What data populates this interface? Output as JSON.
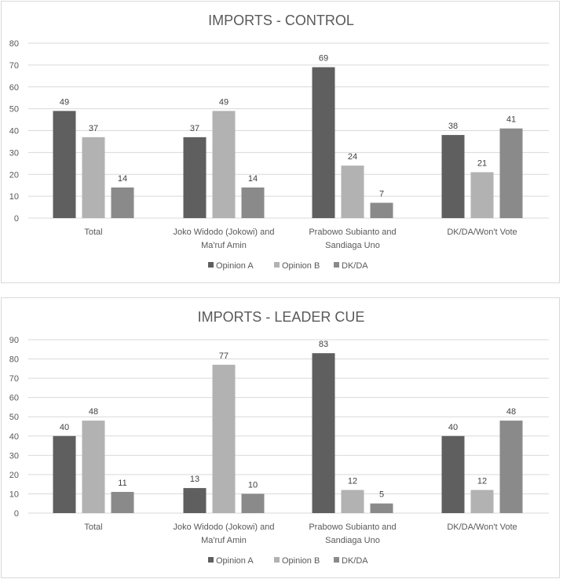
{
  "colors": {
    "opinion_a": "#5f5f5f",
    "opinion_b": "#b2b2b2",
    "dk_da": "#8a8a8a",
    "grid": "#d9d9d9",
    "text": "#595959"
  },
  "chart_data": [
    {
      "type": "bar",
      "title": "IMPORTS - CONTROL",
      "xlabel": "",
      "ylabel": "",
      "ylim": [
        0,
        80
      ],
      "yticks": [
        "0",
        "10",
        "20",
        "30",
        "40",
        "50",
        "60",
        "70",
        "80"
      ],
      "grid": true,
      "legend": "bottom",
      "categories": [
        [
          "Total"
        ],
        [
          "Joko Widodo (Jokowi) and",
          "Ma'ruf Amin"
        ],
        [
          "Prabowo Subianto and",
          "Sandiaga Uno"
        ],
        [
          "DK/DA/Won't Vote"
        ]
      ],
      "series": [
        {
          "name": "Opinion A",
          "values": [
            49,
            37,
            69,
            38
          ]
        },
        {
          "name": "Opinion B",
          "values": [
            37,
            49,
            24,
            21
          ]
        },
        {
          "name": "DK/DA",
          "values": [
            14,
            14,
            7,
            41
          ]
        }
      ]
    },
    {
      "type": "bar",
      "title": "IMPORTS - LEADER CUE",
      "xlabel": "",
      "ylabel": "",
      "ylim": [
        0,
        90
      ],
      "yticks": [
        "0",
        "10",
        "20",
        "30",
        "40",
        "50",
        "60",
        "70",
        "80",
        "90"
      ],
      "grid": true,
      "legend": "bottom",
      "categories": [
        [
          "Total"
        ],
        [
          "Joko Widodo (Jokowi) and",
          "Ma'ruf Amin"
        ],
        [
          "Prabowo Subianto and",
          "Sandiaga Uno"
        ],
        [
          "DK/DA/Won't Vote"
        ]
      ],
      "series": [
        {
          "name": "Opinion A",
          "values": [
            40,
            13,
            83,
            40
          ]
        },
        {
          "name": "Opinion B",
          "values": [
            48,
            77,
            12,
            12
          ]
        },
        {
          "name": "DK/DA",
          "values": [
            11,
            10,
            5,
            48
          ]
        }
      ]
    }
  ]
}
